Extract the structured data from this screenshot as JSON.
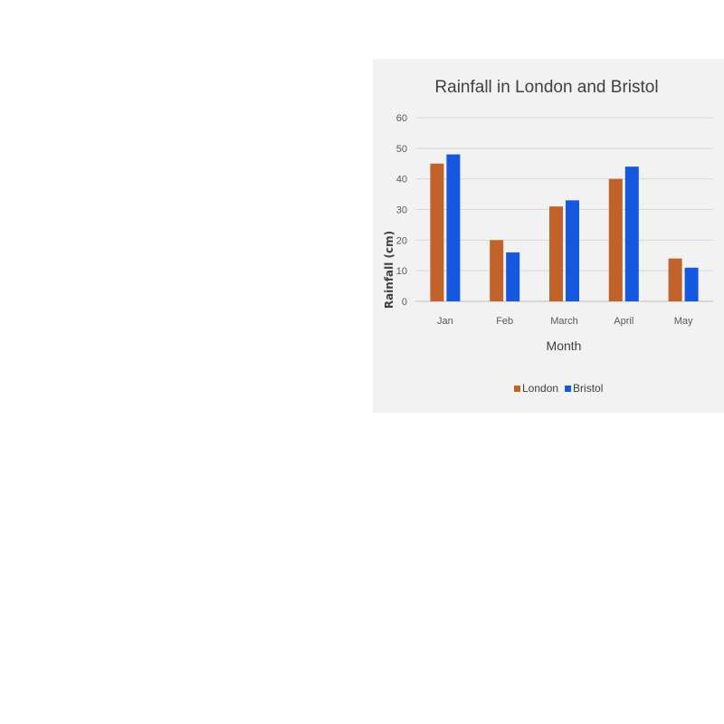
{
  "chart_data": {
    "type": "bar",
    "title": "Rainfall in London and Bristol",
    "xlabel": "Month",
    "ylabel": "Rainfall (cm)",
    "categories": [
      "Jan",
      "Feb",
      "March",
      "April",
      "May"
    ],
    "series": [
      {
        "name": "London",
        "color": "#c0622a",
        "values": [
          45,
          20,
          31,
          40,
          14
        ]
      },
      {
        "name": "Bristol",
        "color": "#1558e0",
        "values": [
          48,
          16,
          33,
          44,
          11
        ]
      }
    ],
    "ylim": [
      0,
      60
    ],
    "yticks": [
      0,
      10,
      20,
      30,
      40,
      50,
      60
    ],
    "grid": true,
    "legend_position": "bottom"
  }
}
